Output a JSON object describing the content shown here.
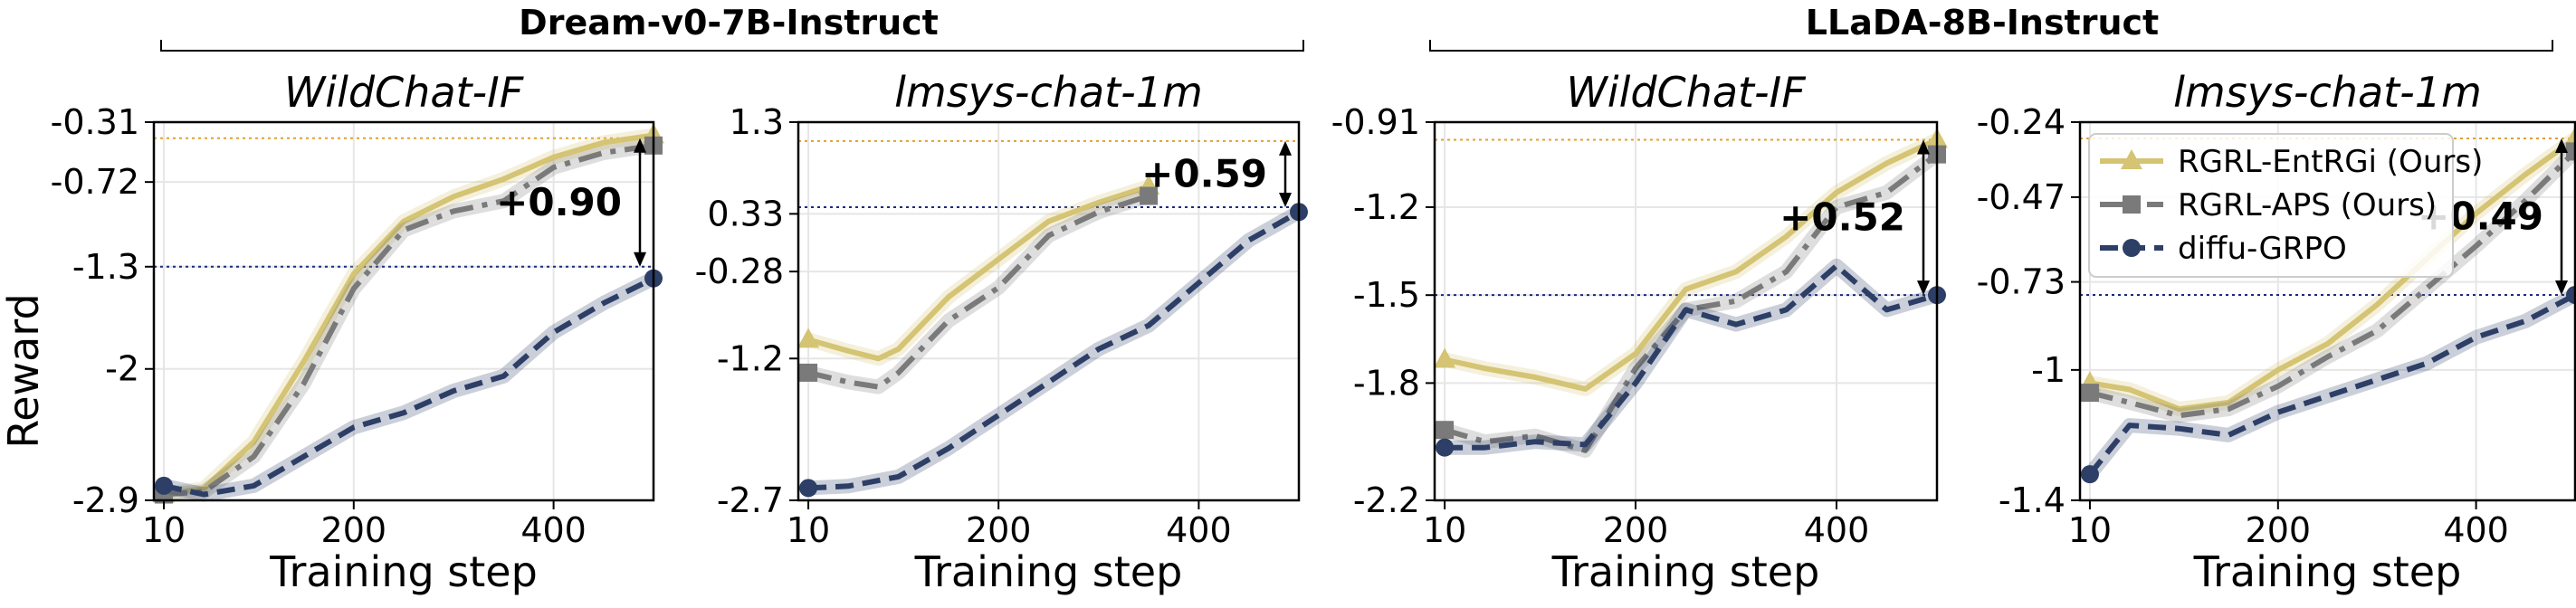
{
  "figure": {
    "ylabel": "Reward",
    "groups": [
      {
        "title": "Dream-v0-7B-Instruct"
      },
      {
        "title": "LLaDA-8B-Instruct"
      }
    ]
  },
  "colors": {
    "RGRL-EntRGi (Ours)": "#d4c473",
    "RGRL-APS (Ours)": "#7a7a7a",
    "diffu-GRPO": "#2d3f66",
    "best_line": "#e0a030",
    "baseline_line": "#1a2a80"
  },
  "legend": {
    "placement": "upper-left",
    "entries": [
      {
        "label": "RGRL-EntRGi (Ours)",
        "marker": "triangle",
        "style": "solid"
      },
      {
        "label": "RGRL-APS (Ours)",
        "marker": "square",
        "style": "dashdot"
      },
      {
        "label": "diffu-GRPO",
        "marker": "circle",
        "style": "dashed"
      }
    ]
  },
  "chart_data": [
    {
      "type": "line",
      "group": "Dream-v0-7B-Instruct",
      "title": "WildChat-IF",
      "xlabel": "Training step",
      "ylabel": "Reward",
      "xlim": [
        0,
        500
      ],
      "ylim": [
        -2.9,
        -0.31
      ],
      "xticks": [
        10,
        200,
        400
      ],
      "yticks": [
        -2.9,
        -2,
        -1.3,
        -0.72,
        -0.31
      ],
      "ytick_labels": [
        "-2.9",
        "-2",
        "-1.3",
        "-0.72",
        "-0.31"
      ],
      "grid": true,
      "annotation": "+0.90",
      "reference_lines": [
        -0.42,
        -1.3
      ],
      "series": [
        {
          "name": "RGRL-EntRGi (Ours)",
          "x": [
            10,
            50,
            100,
            150,
            200,
            250,
            300,
            350,
            400,
            450,
            500
          ],
          "y": [
            -2.86,
            -2.82,
            -2.5,
            -1.95,
            -1.35,
            -0.99,
            -0.82,
            -0.7,
            -0.55,
            -0.45,
            -0.4
          ]
        },
        {
          "name": "RGRL-APS (Ours)",
          "x": [
            10,
            50,
            100,
            150,
            200,
            250,
            300,
            350,
            400,
            450,
            500
          ],
          "y": [
            -2.86,
            -2.84,
            -2.6,
            -2.1,
            -1.45,
            -1.05,
            -0.92,
            -0.85,
            -0.62,
            -0.52,
            -0.47
          ]
        },
        {
          "name": "diffu-GRPO",
          "x": [
            10,
            50,
            100,
            150,
            200,
            250,
            300,
            350,
            400,
            450,
            500
          ],
          "y": [
            -2.8,
            -2.86,
            -2.8,
            -2.6,
            -2.4,
            -2.3,
            -2.15,
            -2.05,
            -1.75,
            -1.55,
            -1.38
          ]
        }
      ]
    },
    {
      "type": "line",
      "group": "Dream-v0-7B-Instruct",
      "title": "lmsys-chat-1m",
      "xlabel": "Training step",
      "ylabel": "",
      "xlim": [
        0,
        500
      ],
      "ylim": [
        -2.7,
        1.3
      ],
      "xticks": [
        10,
        200,
        400
      ],
      "yticks": [
        -2.7,
        -1.2,
        -0.28,
        0.33,
        1.3
      ],
      "ytick_labels": [
        "-2.7",
        "-1.2",
        "-0.28",
        "0.33",
        "1.3"
      ],
      "grid": true,
      "annotation": "+0.59",
      "reference_lines": [
        1.1,
        0.4
      ],
      "series": [
        {
          "name": "RGRL-EntRGi (Ours)",
          "x": [
            10,
            50,
            80,
            100,
            150,
            200,
            250,
            300,
            350
          ],
          "y": [
            -1.0,
            -1.12,
            -1.2,
            -1.1,
            -0.55,
            -0.15,
            0.25,
            0.45,
            0.62
          ]
        },
        {
          "name": "RGRL-APS (Ours)",
          "x": [
            10,
            50,
            80,
            100,
            150,
            200,
            250,
            300,
            350
          ],
          "y": [
            -1.35,
            -1.45,
            -1.5,
            -1.35,
            -0.8,
            -0.45,
            0.1,
            0.35,
            0.52
          ]
        },
        {
          "name": "diffu-GRPO",
          "x": [
            10,
            50,
            100,
            150,
            200,
            250,
            300,
            350,
            400,
            450,
            500
          ],
          "y": [
            -2.57,
            -2.55,
            -2.45,
            -2.15,
            -1.8,
            -1.45,
            -1.1,
            -0.85,
            -0.4,
            0.05,
            0.35
          ]
        }
      ]
    },
    {
      "type": "line",
      "group": "LLaDA-8B-Instruct",
      "title": "WildChat-IF",
      "xlabel": "Training step",
      "ylabel": "",
      "xlim": [
        0,
        500
      ],
      "ylim": [
        -2.2,
        -0.91
      ],
      "xticks": [
        10,
        200,
        400
      ],
      "yticks": [
        -2.2,
        -1.8,
        -1.5,
        -1.2,
        -0.91
      ],
      "ytick_labels": [
        "-2.2",
        "-1.8",
        "-1.5",
        "-1.2",
        "-0.91"
      ],
      "grid": true,
      "annotation": "+0.52",
      "reference_lines": [
        -0.97,
        -1.5
      ],
      "series": [
        {
          "name": "RGRL-EntRGi (Ours)",
          "x": [
            10,
            50,
            100,
            150,
            200,
            250,
            300,
            350,
            400,
            450,
            500
          ],
          "y": [
            -1.72,
            -1.75,
            -1.78,
            -1.82,
            -1.7,
            -1.48,
            -1.42,
            -1.3,
            -1.15,
            -1.05,
            -0.97
          ]
        },
        {
          "name": "RGRL-APS (Ours)",
          "x": [
            10,
            50,
            100,
            150,
            200,
            250,
            300,
            350,
            400,
            450,
            500
          ],
          "y": [
            -1.96,
            -2.0,
            -1.98,
            -2.03,
            -1.75,
            -1.55,
            -1.52,
            -1.42,
            -1.2,
            -1.15,
            -1.02
          ]
        },
        {
          "name": "diffu-GRPO",
          "x": [
            10,
            50,
            100,
            150,
            200,
            250,
            300,
            350,
            400,
            450,
            500
          ],
          "y": [
            -2.02,
            -2.02,
            -2.0,
            -2.01,
            -1.8,
            -1.55,
            -1.6,
            -1.55,
            -1.4,
            -1.55,
            -1.5
          ]
        }
      ]
    },
    {
      "type": "line",
      "group": "LLaDA-8B-Instruct",
      "title": "lmsys-chat-1m",
      "xlabel": "Training step",
      "ylabel": "",
      "xlim": [
        0,
        500
      ],
      "ylim": [
        -1.4,
        -0.24
      ],
      "xticks": [
        10,
        200,
        400
      ],
      "yticks": [
        -1.4,
        -1,
        -0.73,
        -0.47,
        -0.24
      ],
      "ytick_labels": [
        "-1.4",
        "-1",
        "-0.73",
        "-0.47",
        "-0.24"
      ],
      "grid": true,
      "annotation": "+0.49",
      "reference_lines": [
        -0.29,
        -0.77
      ],
      "series": [
        {
          "name": "RGRL-EntRGi (Ours)",
          "x": [
            10,
            50,
            100,
            150,
            200,
            250,
            300,
            350,
            400,
            450,
            500
          ],
          "y": [
            -1.04,
            -1.06,
            -1.12,
            -1.1,
            -1.0,
            -0.92,
            -0.8,
            -0.66,
            -0.52,
            -0.4,
            -0.29
          ]
        },
        {
          "name": "RGRL-APS (Ours)",
          "x": [
            10,
            50,
            100,
            150,
            200,
            250,
            300,
            350,
            400,
            450,
            500
          ],
          "y": [
            -1.07,
            -1.1,
            -1.14,
            -1.12,
            -1.05,
            -0.96,
            -0.88,
            -0.75,
            -0.62,
            -0.48,
            -0.33
          ]
        },
        {
          "name": "diffu-GRPO",
          "x": [
            10,
            50,
            100,
            150,
            200,
            250,
            300,
            350,
            400,
            450,
            500
          ],
          "y": [
            -1.32,
            -1.17,
            -1.18,
            -1.2,
            -1.13,
            -1.08,
            -1.03,
            -0.98,
            -0.9,
            -0.85,
            -0.77
          ]
        }
      ]
    }
  ]
}
